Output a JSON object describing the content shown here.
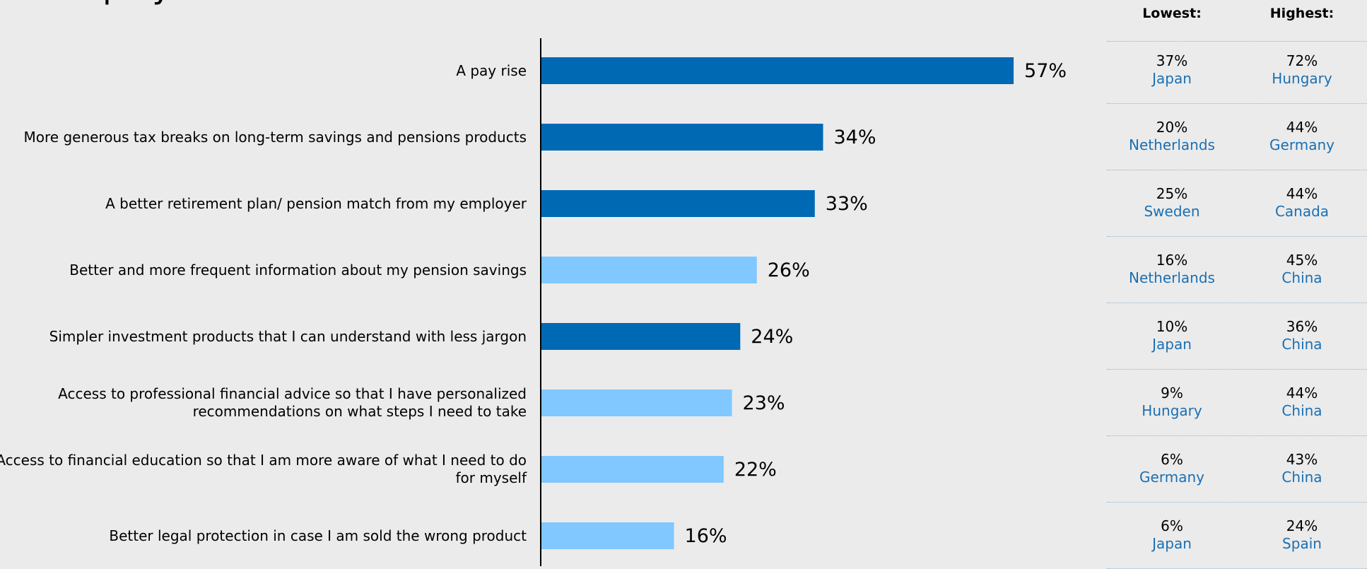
{
  "title": "employer:",
  "table_headers": {
    "lowest": "Lowest:",
    "highest": "Highest:"
  },
  "colors": {
    "dark": "#0069b4",
    "light": "#80c8ff",
    "country": "#1b6fb2"
  },
  "chart_data": {
    "type": "bar",
    "orientation": "horizontal",
    "categories": [
      "A pay rise",
      "More generous tax breaks on long-term savings and pensions products",
      "A better retirement plan/ pension match from my employer",
      "Better and more frequent information about my pension savings",
      "Simpler investment products that I can understand with less jargon",
      "Access to professional financial advice so that I have personalized recommendations on what steps I need to take",
      "Access to financial education so that I am more aware of what I need to do for myself",
      "Better legal protection in case I am sold the wrong product"
    ],
    "values": [
      57,
      34,
      33,
      26,
      24,
      23,
      22,
      16
    ],
    "value_labels": [
      "57%",
      "34%",
      "33%",
      "26%",
      "24%",
      "23%",
      "22%",
      "16%"
    ],
    "bar_colors": [
      "dark",
      "dark",
      "dark",
      "light",
      "dark",
      "light",
      "light",
      "light"
    ],
    "xlim": [
      0,
      100
    ],
    "grid": false
  },
  "table": [
    {
      "lowest_pct": "37%",
      "lowest_country": "Japan",
      "highest_pct": "72%",
      "highest_country": "Hungary"
    },
    {
      "lowest_pct": "20%",
      "lowest_country": "Netherlands",
      "highest_pct": "44%",
      "highest_country": "Germany"
    },
    {
      "lowest_pct": "25%",
      "lowest_country": "Sweden",
      "highest_pct": "44%",
      "highest_country": "Canada"
    },
    {
      "lowest_pct": "16%",
      "lowest_country": "Netherlands",
      "highest_pct": "45%",
      "highest_country": "China"
    },
    {
      "lowest_pct": "10%",
      "lowest_country": "Japan",
      "highest_pct": "36%",
      "highest_country": "China"
    },
    {
      "lowest_pct": "9%",
      "lowest_country": "Hungary",
      "highest_pct": "44%",
      "highest_country": "China"
    },
    {
      "lowest_pct": "6%",
      "lowest_country": "Germany",
      "highest_pct": "43%",
      "highest_country": "China"
    },
    {
      "lowest_pct": "6%",
      "lowest_country": "Japan",
      "highest_pct": "24%",
      "highest_country": "Spain"
    }
  ]
}
